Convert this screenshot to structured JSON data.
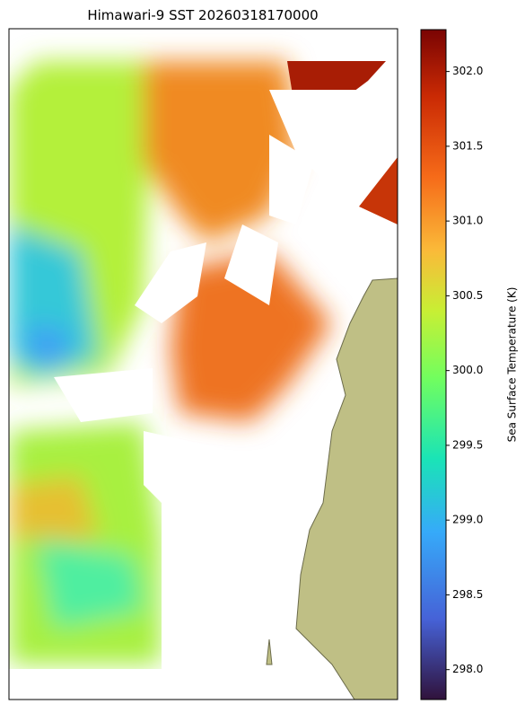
{
  "title": "Himawari-9 SST 20260318170000",
  "colorbar": {
    "label": "Sea Surface Temperature (K)",
    "lim": [
      297.8,
      302.28
    ],
    "ticks": [
      {
        "value": 298,
        "label": "298.0"
      },
      {
        "value": 298.5,
        "label": "298.5"
      },
      {
        "value": 299,
        "label": "299.0"
      },
      {
        "value": 299.5,
        "label": "299.5"
      },
      {
        "value": 300,
        "label": "300.0"
      },
      {
        "value": 300.5,
        "label": "300.5"
      },
      {
        "value": 301,
        "label": "301.0"
      },
      {
        "value": 301.5,
        "label": "301.5"
      },
      {
        "value": 302,
        "label": "302.0"
      }
    ]
  }
}
